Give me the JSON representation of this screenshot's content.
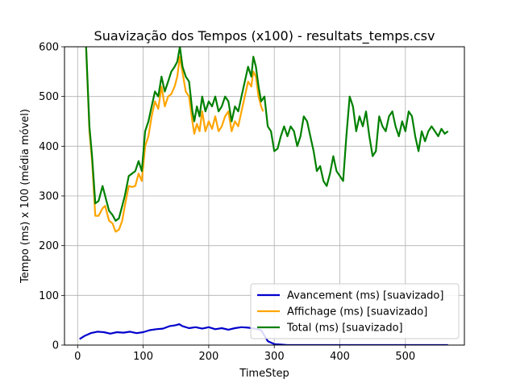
{
  "chart_data": {
    "type": "line",
    "title": "Suavização dos Tempos (x100) - resultats_temps.csv",
    "xlabel": "TimeStep",
    "ylabel": "Tempo (ms) x 100 (média móvel)",
    "xlim": [
      -20,
      590
    ],
    "ylim": [
      0,
      600
    ],
    "xticks": [
      0,
      100,
      200,
      300,
      400,
      500
    ],
    "yticks": [
      0,
      100,
      200,
      300,
      400,
      500,
      600
    ],
    "grid": true,
    "legend_position": "lower-right",
    "series": [
      {
        "name": "Avancement (ms) [suavizado]",
        "color": "#0000cc",
        "x": [
          3,
          10,
          20,
          30,
          40,
          50,
          60,
          70,
          80,
          90,
          100,
          110,
          120,
          130,
          140,
          150,
          155,
          160,
          170,
          180,
          190,
          200,
          210,
          220,
          230,
          240,
          250,
          260,
          270,
          280,
          290,
          300,
          310,
          320,
          340,
          360,
          380,
          400,
          420,
          440,
          460,
          480,
          500,
          520,
          540,
          565
        ],
        "y": [
          12,
          18,
          24,
          27,
          26,
          23,
          26,
          25,
          27,
          24,
          26,
          30,
          32,
          33,
          38,
          40,
          42,
          38,
          34,
          36,
          33,
          36,
          32,
          34,
          31,
          34,
          36,
          35,
          33,
          30,
          8,
          2,
          1,
          0,
          0,
          0,
          0,
          0,
          0,
          0,
          0,
          0,
          0,
          0,
          0,
          0
        ]
      },
      {
        "name": "Affichage (ms) [suavizado]",
        "color": "#ffa500",
        "x": [
          13,
          18,
          22,
          27,
          32,
          38,
          42,
          48,
          53,
          58,
          63,
          68,
          72,
          78,
          83,
          88,
          93,
          98,
          103,
          108,
          113,
          118,
          123,
          128,
          133,
          138,
          143,
          148,
          152,
          156,
          160,
          165,
          170,
          175,
          178,
          182,
          186,
          190,
          195,
          200,
          205,
          210,
          215,
          220,
          225,
          230,
          235,
          240,
          245,
          250,
          255,
          260,
          265,
          268,
          272,
          276,
          280,
          283
        ],
        "y": [
          600,
          430,
          370,
          260,
          260,
          275,
          280,
          250,
          245,
          228,
          232,
          250,
          280,
          320,
          318,
          320,
          345,
          330,
          400,
          420,
          460,
          490,
          475,
          520,
          480,
          500,
          505,
          520,
          540,
          580,
          548,
          510,
          500,
          450,
          425,
          445,
          430,
          470,
          430,
          450,
          435,
          460,
          430,
          440,
          460,
          470,
          430,
          450,
          440,
          470,
          500,
          530,
          520,
          550,
          540,
          500,
          480,
          470
        ]
      },
      {
        "name": "Total (ms) [suavizado]",
        "color": "#008000",
        "x": [
          13,
          18,
          22,
          27,
          32,
          38,
          42,
          48,
          53,
          58,
          63,
          68,
          72,
          78,
          83,
          88,
          93,
          98,
          103,
          108,
          113,
          118,
          123,
          128,
          133,
          138,
          143,
          148,
          152,
          156,
          160,
          165,
          170,
          175,
          178,
          182,
          186,
          190,
          195,
          200,
          205,
          210,
          215,
          220,
          225,
          230,
          235,
          240,
          245,
          250,
          255,
          260,
          265,
          268,
          272,
          276,
          280,
          285,
          290,
          295,
          300,
          305,
          310,
          315,
          320,
          325,
          330,
          335,
          340,
          345,
          350,
          355,
          360,
          365,
          370,
          375,
          380,
          385,
          390,
          395,
          400,
          405,
          410,
          415,
          420,
          425,
          430,
          435,
          440,
          445,
          450,
          455,
          460,
          465,
          470,
          475,
          480,
          485,
          490,
          495,
          500,
          505,
          510,
          515,
          520,
          525,
          530,
          535,
          540,
          545,
          550,
          555,
          560,
          565
        ],
        "y": [
          600,
          440,
          380,
          285,
          290,
          320,
          300,
          270,
          262,
          250,
          255,
          280,
          300,
          340,
          345,
          350,
          370,
          350,
          430,
          450,
          480,
          510,
          500,
          540,
          510,
          530,
          550,
          560,
          570,
          600,
          560,
          540,
          530,
          470,
          450,
          480,
          460,
          500,
          470,
          490,
          480,
          500,
          470,
          480,
          500,
          490,
          450,
          480,
          470,
          500,
          530,
          560,
          540,
          580,
          560,
          520,
          490,
          500,
          440,
          430,
          390,
          395,
          420,
          440,
          420,
          440,
          430,
          400,
          420,
          460,
          450,
          420,
          390,
          350,
          360,
          330,
          320,
          345,
          380,
          350,
          340,
          330,
          420,
          500,
          480,
          430,
          460,
          440,
          470,
          420,
          380,
          390,
          460,
          440,
          430,
          460,
          470,
          440,
          420,
          450,
          430,
          470,
          460,
          420,
          390,
          430,
          410,
          430,
          440,
          430,
          420,
          435,
          425,
          430
        ]
      }
    ]
  }
}
